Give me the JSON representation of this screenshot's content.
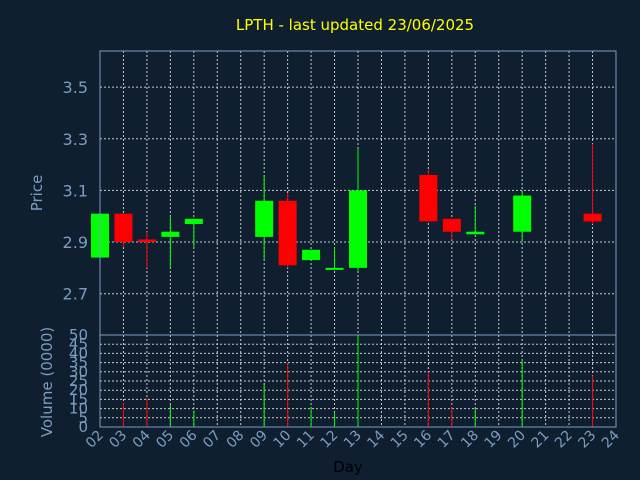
{
  "chart_data": [
    {
      "type": "candlestick",
      "title": "LPTH - last updated 23/06/2025",
      "ylabel": "Price",
      "ylim": [
        2.54,
        3.64
      ],
      "yticks": [
        2.7,
        2.9,
        3.1,
        3.3,
        3.5
      ],
      "ytick_labels": [
        "2.7",
        "2.9",
        "3.1",
        "3.3",
        "3.5"
      ],
      "colors": {
        "up": "#00ff00",
        "down": "#ff0000"
      },
      "grid": true,
      "candles": [
        {
          "day": "02",
          "open": 2.84,
          "close": 3.01,
          "high": 3.01,
          "low": 2.84
        },
        {
          "day": "03",
          "open": 3.01,
          "close": 2.9,
          "high": 3.01,
          "low": 2.88
        },
        {
          "day": "04",
          "open": 2.91,
          "close": 2.9,
          "high": 2.94,
          "low": 2.8
        },
        {
          "day": "05",
          "open": 2.92,
          "close": 2.94,
          "high": 3.0,
          "low": 2.8
        },
        {
          "day": "06",
          "open": 2.97,
          "close": 2.99,
          "high": 2.99,
          "low": 2.88
        },
        {
          "day": "09",
          "open": 2.92,
          "close": 3.06,
          "high": 3.16,
          "low": 2.83
        },
        {
          "day": "10",
          "open": 3.06,
          "close": 2.81,
          "high": 3.09,
          "low": 2.8
        },
        {
          "day": "11",
          "open": 2.83,
          "close": 2.87,
          "high": 2.87,
          "low": 2.83
        },
        {
          "day": "12",
          "open": 2.8,
          "close": 2.8,
          "high": 2.88,
          "low": 2.8
        },
        {
          "day": "13",
          "open": 2.8,
          "close": 3.1,
          "high": 3.26,
          "low": 2.79
        },
        {
          "day": "16",
          "open": 3.16,
          "close": 2.98,
          "high": 3.18,
          "low": 2.98
        },
        {
          "day": "17",
          "open": 2.99,
          "close": 2.94,
          "high": 2.99,
          "low": 2.91
        },
        {
          "day": "18",
          "open": 2.93,
          "close": 2.94,
          "high": 3.04,
          "low": 2.93
        },
        {
          "day": "20",
          "open": 2.94,
          "close": 3.08,
          "high": 3.1,
          "low": 2.9
        },
        {
          "day": "23",
          "open": 3.01,
          "close": 2.98,
          "high": 3.28,
          "low": 2.97
        }
      ]
    },
    {
      "type": "bar",
      "ylabel": "Volume (0000)",
      "xlabel": "Day",
      "ylim": [
        0,
        50
      ],
      "yticks": [
        0,
        5,
        10,
        15,
        20,
        25,
        30,
        35,
        40,
        45,
        50
      ],
      "ytick_labels": [
        "0",
        "5",
        "10",
        "15",
        "20",
        "25",
        "30",
        "35",
        "40",
        "45",
        "50"
      ],
      "categories": [
        "02",
        "03",
        "04",
        "05",
        "06",
        "07",
        "08",
        "09",
        "10",
        "11",
        "12",
        "13",
        "14",
        "15",
        "16",
        "17",
        "18",
        "19",
        "20",
        "21",
        "22",
        "23",
        "24"
      ],
      "volumes": [
        {
          "day": "03",
          "value": 13,
          "direction": "down"
        },
        {
          "day": "04",
          "value": 16,
          "direction": "down"
        },
        {
          "day": "05",
          "value": 12,
          "direction": "up"
        },
        {
          "day": "06",
          "value": 9,
          "direction": "up"
        },
        {
          "day": "09",
          "value": 23,
          "direction": "up"
        },
        {
          "day": "10",
          "value": 35,
          "direction": "down"
        },
        {
          "day": "11",
          "value": 11,
          "direction": "up"
        },
        {
          "day": "12",
          "value": 8,
          "direction": "up"
        },
        {
          "day": "13",
          "value": 50,
          "direction": "up"
        },
        {
          "day": "16",
          "value": 30,
          "direction": "down"
        },
        {
          "day": "17",
          "value": 11,
          "direction": "down"
        },
        {
          "day": "18",
          "value": 10,
          "direction": "up"
        },
        {
          "day": "20",
          "value": 37,
          "direction": "up"
        },
        {
          "day": "23",
          "value": 28,
          "direction": "down"
        }
      ]
    }
  ]
}
